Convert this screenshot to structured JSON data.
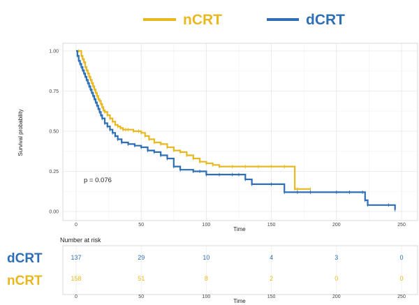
{
  "legend": [
    {
      "name": "nCRT",
      "color": "#e8b820"
    },
    {
      "name": "dCRT",
      "color": "#2d6eb5"
    }
  ],
  "chart_data": {
    "type": "line",
    "step": true,
    "xlabel": "Time",
    "ylabel": "Survival probability",
    "xlim": [
      0,
      250
    ],
    "ylim": [
      0,
      1
    ],
    "x_ticks": [
      "0",
      "50",
      "100",
      "150",
      "200",
      "250"
    ],
    "y_ticks": [
      "0.00",
      "0.25",
      "0.50",
      "0.75",
      "1.00"
    ],
    "grid": true,
    "annotation": "p = 0.076",
    "series": [
      {
        "name": "nCRT",
        "color": "#e8b820",
        "x": [
          0,
          2,
          4,
          5,
          6,
          7,
          8,
          9,
          10,
          11,
          12,
          13,
          14,
          15,
          16,
          17,
          18,
          19,
          20,
          21,
          22,
          24,
          26,
          28,
          30,
          32,
          34,
          36,
          38,
          40,
          44,
          48,
          50,
          53,
          56,
          60,
          65,
          70,
          75,
          80,
          85,
          90,
          95,
          100,
          105,
          110,
          120,
          130,
          140,
          150,
          160,
          168,
          170,
          180
        ],
        "y": [
          1.0,
          1.0,
          0.97,
          0.95,
          0.93,
          0.9,
          0.88,
          0.86,
          0.84,
          0.82,
          0.8,
          0.78,
          0.76,
          0.74,
          0.72,
          0.7,
          0.69,
          0.67,
          0.65,
          0.63,
          0.62,
          0.6,
          0.58,
          0.56,
          0.54,
          0.53,
          0.52,
          0.51,
          0.51,
          0.51,
          0.5,
          0.5,
          0.49,
          0.47,
          0.45,
          0.43,
          0.42,
          0.4,
          0.38,
          0.37,
          0.35,
          0.33,
          0.31,
          0.3,
          0.29,
          0.28,
          0.28,
          0.28,
          0.28,
          0.28,
          0.28,
          0.14,
          0.14,
          0.14
        ]
      },
      {
        "name": "dCRT",
        "color": "#2d6eb5",
        "x": [
          0,
          1,
          2,
          3,
          4,
          5,
          6,
          7,
          8,
          9,
          10,
          11,
          12,
          13,
          14,
          15,
          16,
          17,
          18,
          19,
          20,
          22,
          24,
          26,
          28,
          30,
          32,
          35,
          40,
          45,
          50,
          55,
          60,
          65,
          70,
          75,
          80,
          90,
          95,
          100,
          110,
          120,
          125,
          130,
          135,
          150,
          160,
          170,
          180,
          200,
          210,
          220,
          222,
          224,
          240,
          245
        ],
        "y": [
          1.0,
          0.97,
          0.94,
          0.92,
          0.9,
          0.88,
          0.86,
          0.84,
          0.82,
          0.8,
          0.78,
          0.76,
          0.74,
          0.72,
          0.7,
          0.68,
          0.66,
          0.64,
          0.62,
          0.6,
          0.58,
          0.55,
          0.53,
          0.51,
          0.49,
          0.47,
          0.45,
          0.43,
          0.42,
          0.41,
          0.4,
          0.38,
          0.37,
          0.35,
          0.33,
          0.28,
          0.26,
          0.25,
          0.25,
          0.23,
          0.23,
          0.23,
          0.23,
          0.2,
          0.17,
          0.17,
          0.12,
          0.12,
          0.12,
          0.12,
          0.12,
          0.12,
          0.07,
          0.04,
          0.04,
          0.01
        ]
      }
    ]
  },
  "risk_table": {
    "title": "Number at risk",
    "xlabel": "Time",
    "x_ticks": [
      "0",
      "50",
      "100",
      "150",
      "200",
      "250"
    ],
    "rows": [
      {
        "label": "dCRT",
        "color": "#2d6eb5",
        "values": [
          "137",
          "29",
          "10",
          "4",
          "3",
          "0"
        ]
      },
      {
        "label": "nCRT",
        "color": "#e8b820",
        "values": [
          "158",
          "51",
          "8",
          "2",
          "0",
          "0"
        ]
      }
    ]
  }
}
